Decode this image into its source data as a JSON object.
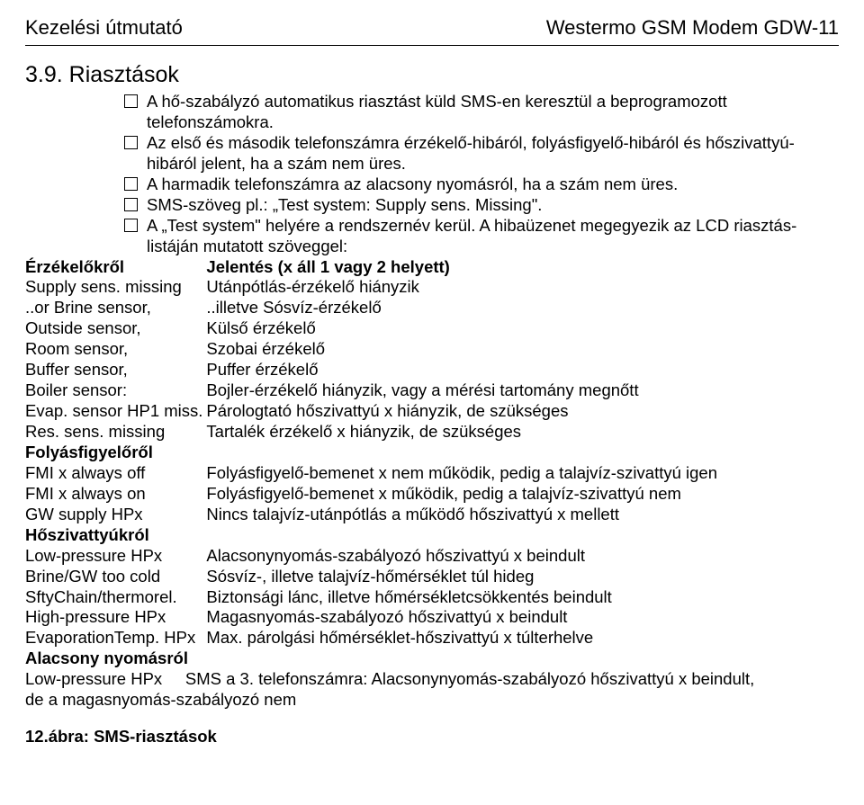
{
  "header": {
    "left": "Kezelési útmutató",
    "right": "Westermo GSM Modem GDW-11"
  },
  "section_title": "3.9. Riasztások",
  "bullets": [
    "A hő-szabályzó automatikus riasztást küld SMS-en keresztül a beprogramozott telefonszámokra.",
    "Az első és második telefonszámra érzékelő-hibáról, folyásfigyelő-hibáról és hőszivattyú-hibáról jelent, ha a szám nem üres.",
    "A harmadik telefonszámra az alacsony nyomásról, ha a szám nem üres.",
    "SMS-szöveg pl.: „Test system: Supply sens. Missing\".",
    "A „Test system\" helyére a rendszernév kerül. A hibaüzenet megegyezik az LCD riasztás-listáján mutatott szöveggel:"
  ],
  "defs": [
    {
      "left": "Érzékelőkről",
      "right": "Jelentés (x áll 1 vagy 2 helyett)",
      "left_bold": true,
      "right_bold": true
    },
    {
      "left": "Supply sens. missing",
      "right": "Utánpótlás-érzékelő hiányzik"
    },
    {
      "left": "..or Brine sensor,",
      "right": "..illetve Sósvíz-érzékelő"
    },
    {
      "left": "Outside sensor,",
      "right": "Külső érzékelő"
    },
    {
      "left": "Room sensor,",
      "right": "Szobai érzékelő"
    },
    {
      "left": "Buffer sensor,",
      "right": "Puffer érzékelő"
    },
    {
      "left": "Boiler sensor:",
      "right": "Bojler-érzékelő hiányzik, vagy a mérési tartomány megnőtt"
    },
    {
      "left": "Evap. sensor HP1 miss.",
      "right": "Párologtató hőszivattyú  x hiányzik, de szükséges"
    },
    {
      "left": "Res. sens. missing",
      "right": "Tartalék érzékelő x hiányzik, de szükséges"
    },
    {
      "left": "Folyásfigyelőről",
      "right": "",
      "left_bold": true
    },
    {
      "left": "FMI x always off",
      "right": "Folyásfigyelő-bemenet x nem működik, pedig a talajvíz-szivattyú igen"
    },
    {
      "left": "FMI x always on",
      "right": "Folyásfigyelő-bemenet x működik, pedig a talajvíz-szivattyú nem"
    },
    {
      "left": "GW supply HPx",
      "right": "Nincs talajvíz-utánpótlás a működő hőszivattyú x mellett"
    },
    {
      "left": "Hőszivattyúkról",
      "right": "",
      "left_bold": true
    },
    {
      "left": "Low-pressure HPx",
      "right": "Alacsonynyomás-szabályozó hőszivattyú x beindult"
    },
    {
      "left": "Brine/GW too cold",
      "right": "Sósvíz-, illetve talajvíz-hőmérséklet túl hideg"
    },
    {
      "left": "SftyChain/thermorel.",
      "right": "Biztonsági lánc, illetve hőmérsékletcsökkentés beindult"
    },
    {
      "left": "High-pressure HPx",
      "right": "Magasnyomás-szabályozó hőszivattyú x beindult"
    },
    {
      "left": "EvaporationTemp. HPx ",
      "right": "Max. párolgási hőmérséklet-hőszivattyú x túlterhelve"
    },
    {
      "left": "Alacsony nyomásról",
      "right": "",
      "left_bold": true
    }
  ],
  "last_line_left": "Low-pressure HPx",
  "last_line_right": "SMS a 3. telefonszámra: Alacsonynyomás-szabályozó hőszivattyú x beindult,",
  "last_line_tail": "de a magasnyomás-szabályozó nem",
  "fig_caption": "12.ábra: SMS-riasztások",
  "colors": {
    "bg": "#ffffff",
    "text": "#000000"
  },
  "fonts": {
    "header_size": 22,
    "section_size": 25,
    "body_size": 18.5
  }
}
